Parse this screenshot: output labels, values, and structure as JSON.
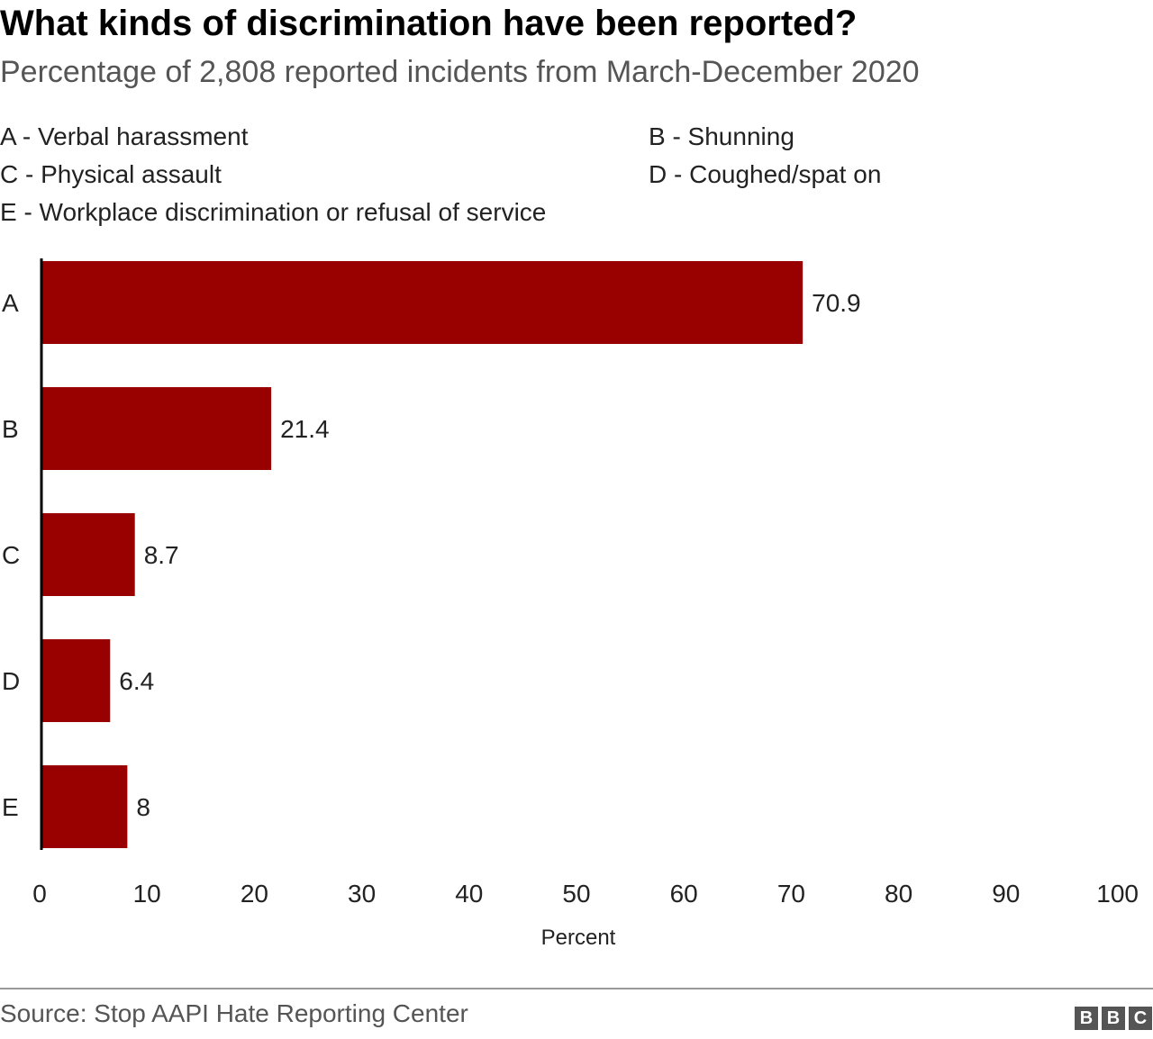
{
  "title": "What kinds of discrimination have been reported?",
  "subtitle": "Percentage of 2,808 reported incidents from March-December 2020",
  "legend": [
    "A - Verbal harassment",
    "B - Shunning",
    "C - Physical assault",
    "D - Coughed/spat on",
    "E - Workplace discrimination or refusal of service"
  ],
  "source": "Source: Stop AAPI Hate Reporting Center",
  "logo": [
    "B",
    "B",
    "C"
  ],
  "colors": {
    "bar": "#990000",
    "axis": "#000000",
    "text": "#222222"
  },
  "chart_data": {
    "type": "bar",
    "orientation": "horizontal",
    "categories": [
      "A",
      "B",
      "C",
      "D",
      "E"
    ],
    "values": [
      70.9,
      21.4,
      8.7,
      6.4,
      8
    ],
    "value_labels": [
      "70.9",
      "21.4",
      "8.7",
      "6.4",
      "8"
    ],
    "xlabel": "Percent",
    "xlim": [
      0,
      100
    ],
    "xticks": [
      0,
      10,
      20,
      30,
      40,
      50,
      60,
      70,
      80,
      90,
      100
    ],
    "grid": false
  }
}
